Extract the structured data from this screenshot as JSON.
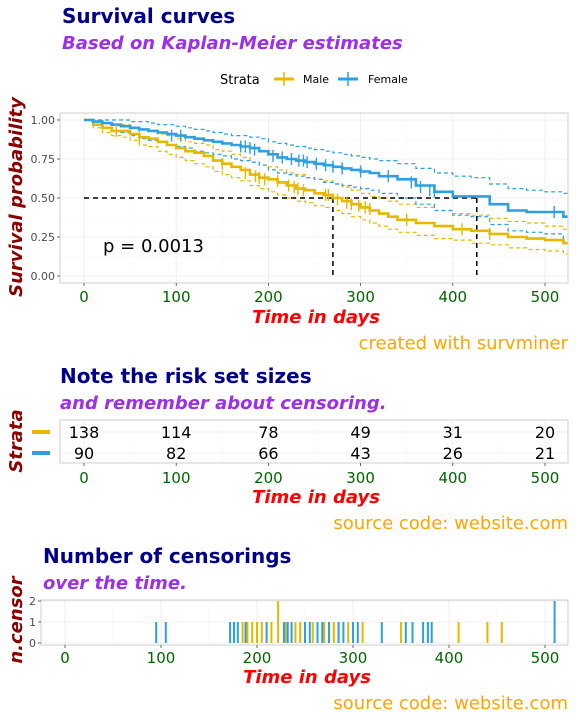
{
  "colors": {
    "male": "#e7b800",
    "female": "#2e9fdf"
  },
  "chart_data": [
    {
      "type": "line",
      "title": "Survival curves",
      "subtitle": "Based on Kaplan-Meier estimates",
      "xlabel": "Time in days",
      "ylabel": "Survival probability",
      "caption": "created with survminer",
      "xlim": [
        0,
        520
      ],
      "ylim": [
        0,
        1
      ],
      "xticks": [
        "0",
        "100",
        "200",
        "300",
        "400",
        "500"
      ],
      "yticks": [
        "0.00",
        "0.25",
        "0.50",
        "0.75",
        "1.00"
      ],
      "legend": {
        "title": "Strata",
        "labels": [
          "Male",
          "Female"
        ],
        "position": "top"
      },
      "annotation": "p = 0.0013",
      "median_survival": {
        "y": 0.5,
        "times": [
          270,
          426
        ]
      },
      "series": [
        {
          "name": "Male",
          "x": [
            0,
            10,
            20,
            30,
            40,
            50,
            60,
            70,
            80,
            90,
            100,
            110,
            120,
            130,
            140,
            150,
            160,
            170,
            180,
            190,
            200,
            210,
            220,
            230,
            240,
            250,
            260,
            270,
            280,
            290,
            300,
            310,
            320,
            330,
            340,
            360,
            380,
            400,
            420,
            440,
            460,
            480,
            500,
            520
          ],
          "y": [
            1.0,
            0.97,
            0.95,
            0.93,
            0.93,
            0.91,
            0.89,
            0.88,
            0.86,
            0.84,
            0.82,
            0.8,
            0.79,
            0.77,
            0.74,
            0.72,
            0.7,
            0.68,
            0.65,
            0.63,
            0.62,
            0.6,
            0.58,
            0.56,
            0.55,
            0.53,
            0.52,
            0.5,
            0.48,
            0.46,
            0.44,
            0.42,
            0.4,
            0.38,
            0.36,
            0.34,
            0.32,
            0.3,
            0.29,
            0.27,
            0.25,
            0.24,
            0.23,
            0.21
          ],
          "lower": [
            1.0,
            0.95,
            0.92,
            0.9,
            0.89,
            0.87,
            0.84,
            0.83,
            0.8,
            0.78,
            0.76,
            0.74,
            0.72,
            0.7,
            0.67,
            0.65,
            0.63,
            0.61,
            0.58,
            0.56,
            0.54,
            0.52,
            0.5,
            0.48,
            0.47,
            0.45,
            0.44,
            0.42,
            0.4,
            0.38,
            0.36,
            0.34,
            0.32,
            0.3,
            0.28,
            0.26,
            0.24,
            0.23,
            0.21,
            0.2,
            0.18,
            0.17,
            0.16,
            0.14
          ],
          "upper": [
            1.0,
            1.0,
            0.98,
            0.97,
            0.97,
            0.95,
            0.94,
            0.93,
            0.91,
            0.9,
            0.88,
            0.86,
            0.85,
            0.84,
            0.81,
            0.8,
            0.78,
            0.76,
            0.73,
            0.71,
            0.7,
            0.68,
            0.66,
            0.65,
            0.63,
            0.62,
            0.61,
            0.59,
            0.57,
            0.55,
            0.53,
            0.51,
            0.5,
            0.48,
            0.46,
            0.44,
            0.42,
            0.4,
            0.39,
            0.37,
            0.35,
            0.34,
            0.32,
            0.3
          ],
          "censor_x": [
            35,
            60,
            150,
            175,
            186,
            190,
            196,
            210,
            222,
            228,
            232,
            238,
            262,
            265,
            275,
            285,
            290,
            298,
            305,
            310,
            350,
            410,
            440
          ],
          "censor_y": [
            0.93,
            0.89,
            0.72,
            0.66,
            0.64,
            0.63,
            0.62,
            0.61,
            0.58,
            0.57,
            0.56,
            0.55,
            0.52,
            0.52,
            0.49,
            0.47,
            0.46,
            0.45,
            0.44,
            0.43,
            0.36,
            0.3,
            0.27
          ]
        },
        {
          "name": "Female",
          "x": [
            0,
            10,
            20,
            30,
            40,
            50,
            60,
            70,
            80,
            90,
            100,
            110,
            120,
            130,
            140,
            150,
            160,
            170,
            180,
            190,
            200,
            210,
            220,
            230,
            240,
            250,
            260,
            270,
            280,
            290,
            300,
            310,
            320,
            340,
            360,
            380,
            400,
            420,
            440,
            460,
            480,
            500,
            520
          ],
          "y": [
            1.0,
            0.99,
            0.98,
            0.97,
            0.96,
            0.95,
            0.94,
            0.93,
            0.92,
            0.91,
            0.9,
            0.89,
            0.88,
            0.87,
            0.86,
            0.85,
            0.84,
            0.83,
            0.82,
            0.8,
            0.78,
            0.76,
            0.75,
            0.74,
            0.73,
            0.72,
            0.71,
            0.7,
            0.69,
            0.68,
            0.67,
            0.66,
            0.64,
            0.62,
            0.58,
            0.54,
            0.51,
            0.51,
            0.46,
            0.42,
            0.41,
            0.41,
            0.38
          ],
          "lower": [
            1.0,
            0.97,
            0.95,
            0.93,
            0.92,
            0.9,
            0.88,
            0.87,
            0.86,
            0.84,
            0.83,
            0.82,
            0.8,
            0.79,
            0.78,
            0.77,
            0.75,
            0.74,
            0.73,
            0.71,
            0.68,
            0.66,
            0.65,
            0.64,
            0.63,
            0.62,
            0.6,
            0.59,
            0.58,
            0.57,
            0.56,
            0.55,
            0.53,
            0.5,
            0.46,
            0.42,
            0.39,
            0.38,
            0.33,
            0.29,
            0.28,
            0.27,
            0.24
          ],
          "upper": [
            1.0,
            1.0,
            1.0,
            1.0,
            1.0,
            0.99,
            0.99,
            0.98,
            0.97,
            0.97,
            0.96,
            0.95,
            0.94,
            0.93,
            0.92,
            0.91,
            0.9,
            0.9,
            0.89,
            0.88,
            0.86,
            0.85,
            0.84,
            0.83,
            0.82,
            0.81,
            0.8,
            0.79,
            0.78,
            0.77,
            0.76,
            0.75,
            0.74,
            0.72,
            0.69,
            0.66,
            0.64,
            0.63,
            0.59,
            0.56,
            0.55,
            0.54,
            0.53
          ],
          "censor_x": [
            95,
            105,
            170,
            175,
            180,
            185,
            205,
            215,
            225,
            233,
            238,
            242,
            252,
            262,
            270,
            280,
            300,
            330,
            355,
            365,
            375,
            380,
            510
          ],
          "censor_y": [
            0.9,
            0.9,
            0.83,
            0.83,
            0.82,
            0.81,
            0.77,
            0.76,
            0.75,
            0.74,
            0.74,
            0.73,
            0.72,
            0.71,
            0.7,
            0.69,
            0.67,
            0.64,
            0.6,
            0.57,
            0.55,
            0.54,
            0.41
          ]
        }
      ]
    },
    {
      "type": "table",
      "title": "Note the risk set sizes",
      "subtitle": "and remember about censoring.",
      "xlabel": "Time in days",
      "ylabel": "Strata",
      "caption": "source code: website.com",
      "times": [
        0,
        100,
        200,
        300,
        400,
        500
      ],
      "xticks": [
        "0",
        "100",
        "200",
        "300",
        "400",
        "500"
      ],
      "rows": [
        {
          "name": "Male",
          "values": [
            "138",
            "114",
            "78",
            "49",
            "31",
            "20"
          ]
        },
        {
          "name": "Female",
          "values": [
            "90",
            "82",
            "66",
            "43",
            "26",
            "21"
          ]
        }
      ]
    },
    {
      "type": "bar",
      "title": "Number of censorings",
      "subtitle": "over the time.",
      "xlabel": "Time in days",
      "ylabel": "n.censor",
      "caption": "source code: website.com",
      "xlim": [
        0,
        520
      ],
      "ylim": [
        0,
        2
      ],
      "xticks": [
        "0",
        "100",
        "200",
        "300",
        "400",
        "500"
      ],
      "yticks": [
        "0",
        "1",
        "2"
      ],
      "series": [
        {
          "name": "Male",
          "x": [
            185,
            190,
            195,
            200,
            205,
            215,
            222,
            230,
            240,
            245,
            258,
            270,
            280,
            285,
            295,
            300,
            310,
            350,
            410,
            440,
            455
          ],
          "values": [
            1,
            1,
            1,
            1,
            1,
            1,
            2,
            1,
            1,
            1,
            1,
            1,
            1,
            1,
            1,
            1,
            1,
            1,
            1,
            1,
            1
          ]
        },
        {
          "name": "Female",
          "x": [
            95,
            105,
            172,
            176,
            180,
            188,
            210,
            228,
            232,
            236,
            250,
            255,
            263,
            268,
            275,
            285,
            290,
            300,
            305,
            330,
            355,
            362,
            373,
            378,
            382,
            510
          ],
          "values": [
            1,
            1,
            1,
            1,
            1,
            1,
            1,
            1,
            1,
            1,
            1,
            1,
            1,
            1,
            1,
            1,
            1,
            1,
            1,
            1,
            1,
            1,
            1,
            1,
            1,
            2
          ]
        }
      ]
    }
  ]
}
